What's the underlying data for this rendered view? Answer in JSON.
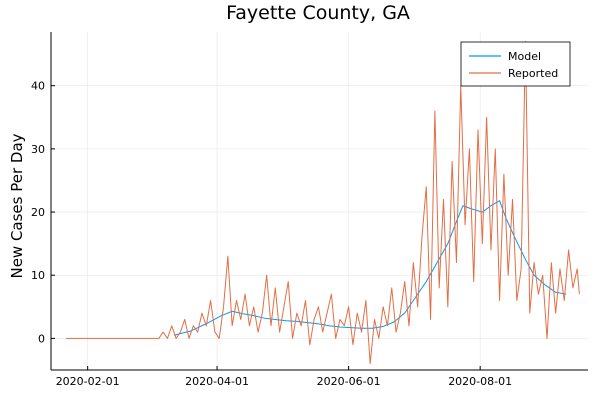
{
  "chart_data": {
    "type": "line",
    "title": "Fayette County, GA",
    "xlabel": "",
    "ylabel": "New Cases Per Day",
    "x_range": [
      "2020-01-15",
      "2020-09-20"
    ],
    "ylim": [
      -5,
      48.5
    ],
    "x_ticks": [
      "2020-02-01",
      "2020-04-01",
      "2020-06-01",
      "2020-08-01"
    ],
    "y_ticks": [
      0,
      10,
      20,
      30,
      40
    ],
    "grid": true,
    "legend": "top-right",
    "series": [
      {
        "name": "Model",
        "color": "#009AFA",
        "points": [
          [
            "2020-03-12",
            0.5
          ],
          [
            "2020-03-20",
            1.2
          ],
          [
            "2020-03-28",
            2.5
          ],
          [
            "2020-04-03",
            3.6
          ],
          [
            "2020-04-08",
            4.3
          ],
          [
            "2020-04-13",
            3.9
          ],
          [
            "2020-04-18",
            3.6
          ],
          [
            "2020-04-23",
            3.2
          ],
          [
            "2020-04-28",
            3.0
          ],
          [
            "2020-05-03",
            2.8
          ],
          [
            "2020-05-08",
            2.7
          ],
          [
            "2020-05-13",
            2.5
          ],
          [
            "2020-05-18",
            2.3
          ],
          [
            "2020-05-23",
            2.0
          ],
          [
            "2020-05-28",
            1.8
          ],
          [
            "2020-06-02",
            1.7
          ],
          [
            "2020-06-07",
            1.6
          ],
          [
            "2020-06-12",
            1.6
          ],
          [
            "2020-06-17",
            1.9
          ],
          [
            "2020-06-22",
            2.6
          ],
          [
            "2020-06-27",
            4.0
          ],
          [
            "2020-07-02",
            6.5
          ],
          [
            "2020-07-07",
            9.0
          ],
          [
            "2020-07-12",
            12.0
          ],
          [
            "2020-07-17",
            15.0
          ],
          [
            "2020-07-21",
            18.5
          ],
          [
            "2020-07-24",
            21.0
          ],
          [
            "2020-07-28",
            20.5
          ],
          [
            "2020-08-02",
            20.0
          ],
          [
            "2020-08-06",
            21.0
          ],
          [
            "2020-08-10",
            21.8
          ],
          [
            "2020-08-13",
            19.0
          ],
          [
            "2020-08-17",
            16.0
          ],
          [
            "2020-08-22",
            12.5
          ],
          [
            "2020-08-26",
            10.0
          ],
          [
            "2020-08-31",
            8.5
          ],
          [
            "2020-09-05",
            7.3
          ],
          [
            "2020-09-10",
            7.0
          ]
        ]
      },
      {
        "name": "Reported",
        "color": "#E26F46",
        "points": [
          [
            "2020-01-22",
            0
          ],
          [
            "2020-03-05",
            0
          ],
          [
            "2020-03-07",
            1
          ],
          [
            "2020-03-09",
            0
          ],
          [
            "2020-03-11",
            2
          ],
          [
            "2020-03-13",
            0
          ],
          [
            "2020-03-15",
            1
          ],
          [
            "2020-03-17",
            3
          ],
          [
            "2020-03-19",
            0
          ],
          [
            "2020-03-21",
            2
          ],
          [
            "2020-03-23",
            1
          ],
          [
            "2020-03-25",
            4
          ],
          [
            "2020-03-27",
            2
          ],
          [
            "2020-03-29",
            6
          ],
          [
            "2020-03-31",
            1
          ],
          [
            "2020-04-02",
            0
          ],
          [
            "2020-04-04",
            5
          ],
          [
            "2020-04-06",
            13
          ],
          [
            "2020-04-08",
            2
          ],
          [
            "2020-04-10",
            6
          ],
          [
            "2020-04-12",
            3
          ],
          [
            "2020-04-14",
            7
          ],
          [
            "2020-04-16",
            2
          ],
          [
            "2020-04-18",
            5
          ],
          [
            "2020-04-20",
            1
          ],
          [
            "2020-04-22",
            4
          ],
          [
            "2020-04-24",
            10
          ],
          [
            "2020-04-26",
            2
          ],
          [
            "2020-04-28",
            8
          ],
          [
            "2020-04-30",
            1
          ],
          [
            "2020-05-02",
            5
          ],
          [
            "2020-05-04",
            9
          ],
          [
            "2020-05-06",
            0
          ],
          [
            "2020-05-08",
            4
          ],
          [
            "2020-05-10",
            2
          ],
          [
            "2020-05-12",
            6
          ],
          [
            "2020-05-14",
            -1
          ],
          [
            "2020-05-16",
            3
          ],
          [
            "2020-05-18",
            5
          ],
          [
            "2020-05-20",
            1
          ],
          [
            "2020-05-22",
            4
          ],
          [
            "2020-05-24",
            7
          ],
          [
            "2020-05-26",
            0
          ],
          [
            "2020-05-28",
            3
          ],
          [
            "2020-05-30",
            2
          ],
          [
            "2020-06-01",
            5
          ],
          [
            "2020-06-03",
            -1
          ],
          [
            "2020-06-05",
            4
          ],
          [
            "2020-06-07",
            1
          ],
          [
            "2020-06-09",
            6
          ],
          [
            "2020-06-11",
            -4
          ],
          [
            "2020-06-13",
            3
          ],
          [
            "2020-06-15",
            0
          ],
          [
            "2020-06-17",
            5
          ],
          [
            "2020-06-19",
            2
          ],
          [
            "2020-06-21",
            8
          ],
          [
            "2020-06-23",
            1
          ],
          [
            "2020-06-25",
            4
          ],
          [
            "2020-06-27",
            9
          ],
          [
            "2020-06-29",
            2
          ],
          [
            "2020-07-01",
            12
          ],
          [
            "2020-07-03",
            5
          ],
          [
            "2020-07-05",
            16
          ],
          [
            "2020-07-07",
            24
          ],
          [
            "2020-07-09",
            3
          ],
          [
            "2020-07-11",
            36
          ],
          [
            "2020-07-13",
            8
          ],
          [
            "2020-07-15",
            22
          ],
          [
            "2020-07-17",
            5
          ],
          [
            "2020-07-19",
            28
          ],
          [
            "2020-07-21",
            12
          ],
          [
            "2020-07-23",
            40
          ],
          [
            "2020-07-25",
            18
          ],
          [
            "2020-07-27",
            30
          ],
          [
            "2020-07-29",
            9
          ],
          [
            "2020-07-31",
            33
          ],
          [
            "2020-08-02",
            15
          ],
          [
            "2020-08-04",
            35
          ],
          [
            "2020-08-06",
            14
          ],
          [
            "2020-08-08",
            30
          ],
          [
            "2020-08-10",
            6
          ],
          [
            "2020-08-12",
            26
          ],
          [
            "2020-08-14",
            10
          ],
          [
            "2020-08-16",
            22
          ],
          [
            "2020-08-18",
            6
          ],
          [
            "2020-08-20",
            11
          ],
          [
            "2020-08-22",
            47
          ],
          [
            "2020-08-24",
            4
          ],
          [
            "2020-08-26",
            12
          ],
          [
            "2020-08-28",
            7
          ],
          [
            "2020-08-30",
            10
          ],
          [
            "2020-09-01",
            0
          ],
          [
            "2020-09-03",
            12
          ],
          [
            "2020-09-05",
            4
          ],
          [
            "2020-09-07",
            11
          ],
          [
            "2020-09-09",
            6
          ],
          [
            "2020-09-11",
            14
          ],
          [
            "2020-09-13",
            8
          ],
          [
            "2020-09-15",
            11
          ],
          [
            "2020-09-16",
            7
          ]
        ]
      }
    ]
  }
}
